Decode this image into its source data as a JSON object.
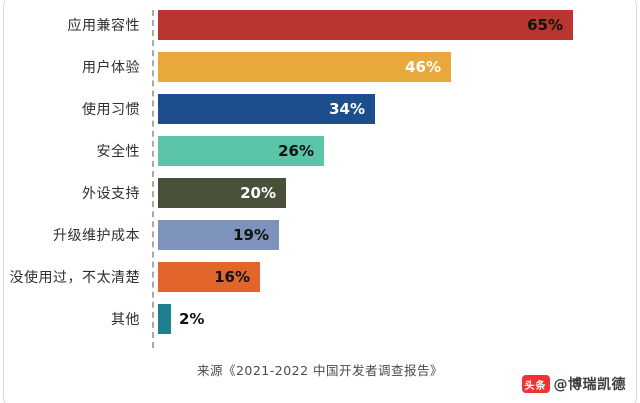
{
  "chart_data": {
    "type": "bar",
    "orientation": "horizontal",
    "title": "",
    "xlabel": "",
    "ylabel": "",
    "xlim": [
      0,
      70
    ],
    "grid": false,
    "legend": false,
    "categories": [
      "应用兼容性",
      "用户体验",
      "使用习惯",
      "安全性",
      "外设支持",
      "升级维护成本",
      "没使用过，不太清楚",
      "其他"
    ],
    "values": [
      65,
      46,
      34,
      26,
      20,
      19,
      16,
      2
    ],
    "value_labels": [
      "65%",
      "46%",
      "34%",
      "26%",
      "20%",
      "19%",
      "16%",
      "2%"
    ],
    "colors": [
      "#b8362e",
      "#e9a83b",
      "#1c4e8e",
      "#5cc4a8",
      "#49513a",
      "#7d93bb",
      "#e2662b",
      "#1d7f90"
    ],
    "label_colors": [
      "#111111",
      "#ffffff",
      "#ffffff",
      "#111111",
      "#ffffff",
      "#111111",
      "#111111",
      "#111111"
    ],
    "source": "来源《2021-2022 中国开发者调查报告》"
  },
  "watermark": {
    "brand": "头条",
    "account": "@博瑞凯德"
  }
}
